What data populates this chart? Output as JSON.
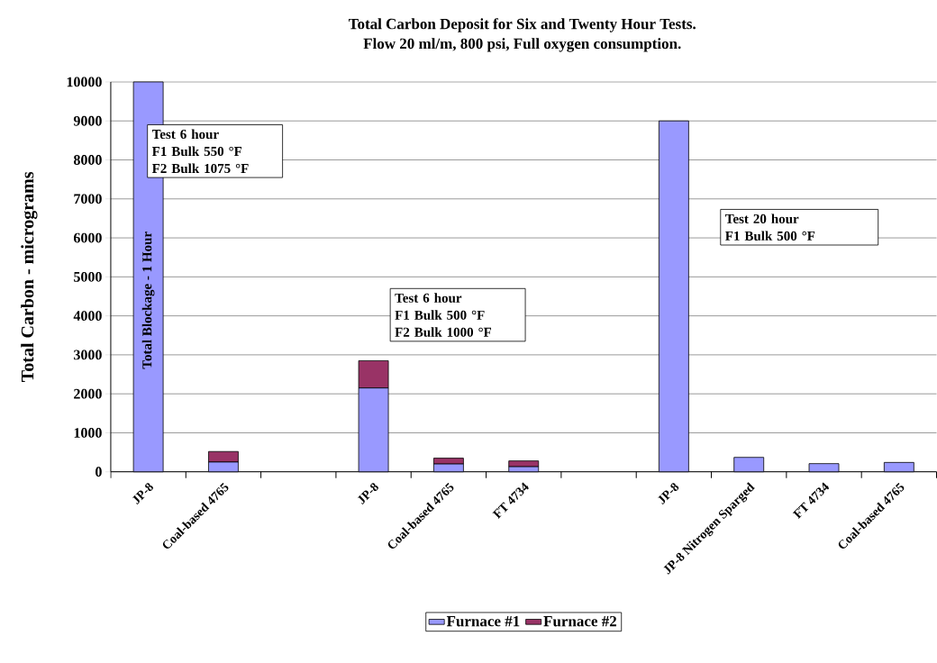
{
  "chart_data": {
    "type": "bar",
    "stacked": true,
    "title": "Total Carbon Deposit for Six and Twenty Hour Tests.",
    "subtitle": "Flow 20 ml/m, 800 psi, Full oxygen consumption.",
    "ylabel": "Total Carbon - micrograms",
    "categories": [
      "JP-8",
      "Coal-based 4765",
      null,
      "JP-8",
      "Coal-based 4765",
      "FT 4734",
      null,
      "JP-8",
      "JP-8 Nitrogen Sparged",
      "FT 4734",
      "Coal-based 4765"
    ],
    "series": [
      {
        "name": "Furnace #1",
        "color": "#9999ff",
        "values": [
          10000,
          250,
          null,
          2150,
          200,
          130,
          null,
          9000,
          370,
          210,
          240
        ]
      },
      {
        "name": "Furnace #2",
        "color": "#993366",
        "values": [
          null,
          270,
          null,
          700,
          150,
          150,
          null,
          null,
          null,
          null,
          null
        ]
      }
    ],
    "ylim": [
      0,
      10000
    ],
    "yticks": [
      0,
      1000,
      2000,
      3000,
      4000,
      5000,
      6000,
      7000,
      8000,
      9000,
      10000
    ],
    "grid": "y",
    "legend": "bottom",
    "annotations": [
      "Total Blockage - 1 Hour",
      "Test 6 hour",
      "F1 Bulk 550 °F",
      "F2 Bulk 1075 °F",
      "Test 6 hour",
      "F1 Bulk 500 °F",
      "F2 Bulk 1000 °F",
      "Test 20 hour",
      "F1 Bulk 500 °F"
    ]
  }
}
